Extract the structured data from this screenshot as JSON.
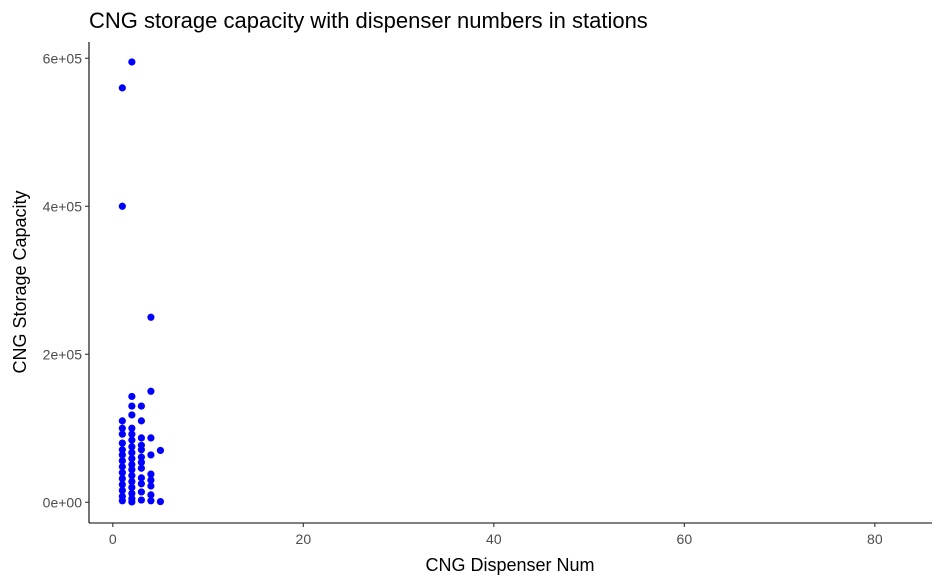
{
  "chart_data": {
    "type": "scatter",
    "title": "CNG storage capacity with dispenser numbers in stations",
    "xlabel": "CNG Dispenser Num",
    "ylabel": "CNG Storage Capacity",
    "xlim": [
      -2.5,
      86
    ],
    "ylim": [
      -28000,
      622000
    ],
    "x_ticks": [
      0,
      20,
      40,
      60,
      80
    ],
    "x_tick_labels": [
      "0",
      "20",
      "40",
      "60",
      "80"
    ],
    "y_ticks": [
      0,
      200000,
      400000,
      600000
    ],
    "y_tick_labels": [
      "0e+00",
      "2e+05",
      "4e+05",
      "6e+05"
    ],
    "grid": false,
    "legend": "none",
    "point_color": "#0000ff",
    "points": [
      {
        "x": 2,
        "y": 595000
      },
      {
        "x": 1,
        "y": 560000
      },
      {
        "x": 1,
        "y": 400000
      },
      {
        "x": 4,
        "y": 250000
      },
      {
        "x": 4,
        "y": 150000
      },
      {
        "x": 2,
        "y": 143000
      },
      {
        "x": 2,
        "y": 130000
      },
      {
        "x": 3,
        "y": 130000
      },
      {
        "x": 2,
        "y": 118000
      },
      {
        "x": 3,
        "y": 110000
      },
      {
        "x": 1,
        "y": 110000
      },
      {
        "x": 1,
        "y": 100000
      },
      {
        "x": 2,
        "y": 100000
      },
      {
        "x": 1,
        "y": 92000
      },
      {
        "x": 2,
        "y": 92000
      },
      {
        "x": 3,
        "y": 87000
      },
      {
        "x": 4,
        "y": 87000
      },
      {
        "x": 2,
        "y": 84000
      },
      {
        "x": 1,
        "y": 80000
      },
      {
        "x": 3,
        "y": 77000
      },
      {
        "x": 2,
        "y": 75000
      },
      {
        "x": 1,
        "y": 71000
      },
      {
        "x": 3,
        "y": 71000
      },
      {
        "x": 5,
        "y": 70000
      },
      {
        "x": 2,
        "y": 67000
      },
      {
        "x": 1,
        "y": 64000
      },
      {
        "x": 4,
        "y": 64000
      },
      {
        "x": 3,
        "y": 61000
      },
      {
        "x": 2,
        "y": 59000
      },
      {
        "x": 1,
        "y": 56000
      },
      {
        "x": 3,
        "y": 54000
      },
      {
        "x": 2,
        "y": 51000
      },
      {
        "x": 1,
        "y": 48000
      },
      {
        "x": 3,
        "y": 46000
      },
      {
        "x": 2,
        "y": 44000
      },
      {
        "x": 1,
        "y": 40000
      },
      {
        "x": 4,
        "y": 38000
      },
      {
        "x": 2,
        "y": 36000
      },
      {
        "x": 3,
        "y": 33000
      },
      {
        "x": 1,
        "y": 32000
      },
      {
        "x": 4,
        "y": 30000
      },
      {
        "x": 2,
        "y": 28000
      },
      {
        "x": 3,
        "y": 25000
      },
      {
        "x": 1,
        "y": 24000
      },
      {
        "x": 4,
        "y": 22000
      },
      {
        "x": 2,
        "y": 20000
      },
      {
        "x": 1,
        "y": 16000
      },
      {
        "x": 3,
        "y": 14000
      },
      {
        "x": 2,
        "y": 12000
      },
      {
        "x": 4,
        "y": 10000
      },
      {
        "x": 1,
        "y": 8000
      },
      {
        "x": 2,
        "y": 5000
      },
      {
        "x": 3,
        "y": 3000
      },
      {
        "x": 1,
        "y": 2000
      },
      {
        "x": 4,
        "y": 2000
      },
      {
        "x": 5,
        "y": 1000
      },
      {
        "x": 2,
        "y": 500
      }
    ]
  }
}
